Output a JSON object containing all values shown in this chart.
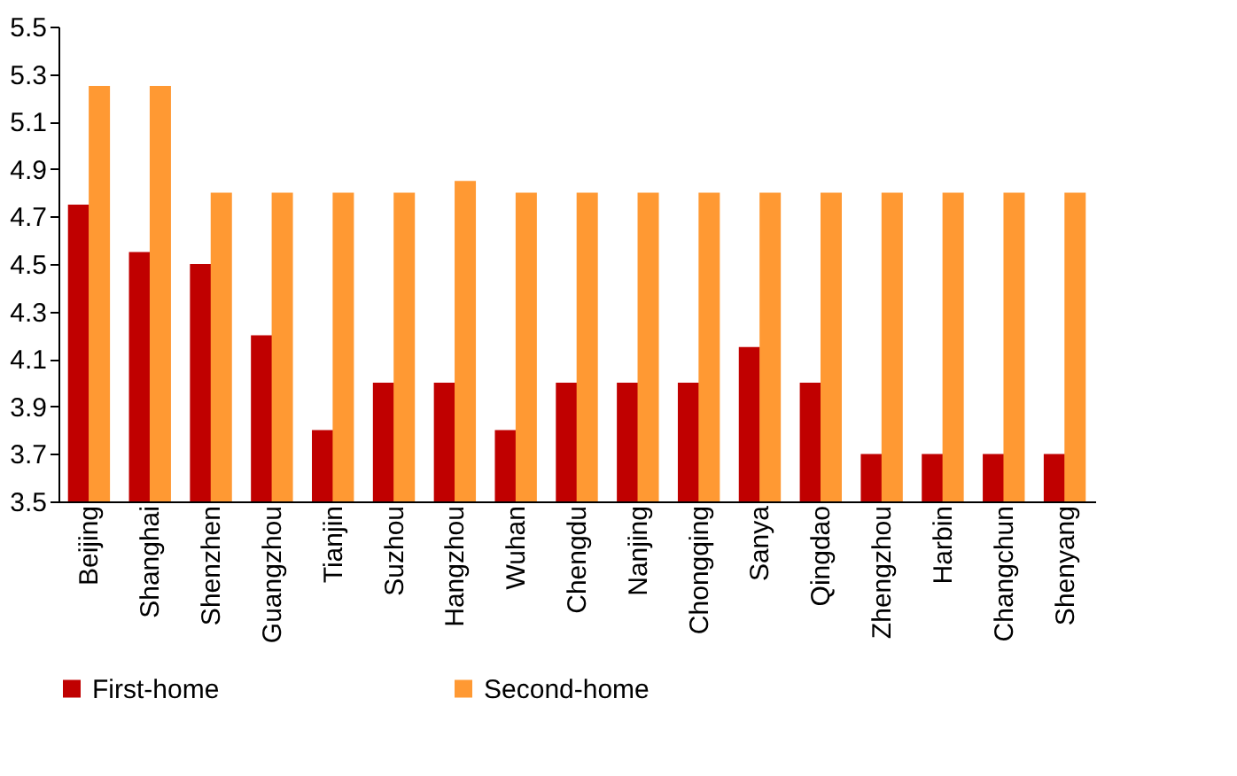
{
  "chart_data": {
    "type": "bar",
    "categories": [
      "Beijing",
      "Shanghai",
      "Shenzhen",
      "Guangzhou",
      "Tianjin",
      "Suzhou",
      "Hangzhou",
      "Wuhan",
      "Chengdu",
      "Nanjing",
      "Chongqing",
      "Sanya",
      "Qingdao",
      "Zhengzhou",
      "Harbin",
      "Changchun",
      "Shenyang"
    ],
    "series": [
      {
        "name": "First-home",
        "color": "#c00000",
        "values": [
          4.75,
          4.55,
          4.5,
          4.2,
          3.8,
          4.0,
          4.0,
          3.8,
          4.0,
          4.0,
          4.0,
          4.15,
          4.0,
          3.7,
          3.7,
          3.7,
          3.7
        ]
      },
      {
        "name": "Second-home",
        "color": "#ff9933",
        "values": [
          5.25,
          5.25,
          4.8,
          4.8,
          4.8,
          4.8,
          4.85,
          4.8,
          4.8,
          4.8,
          4.8,
          4.8,
          4.8,
          4.8,
          4.8,
          4.8,
          4.8
        ]
      }
    ],
    "ylim": [
      3.5,
      5.5
    ],
    "yticks": [
      3.5,
      3.7,
      3.9,
      4.1,
      4.3,
      4.5,
      4.7,
      4.9,
      5.1,
      5.3,
      5.5
    ],
    "grid": false,
    "legend": "bottom"
  }
}
